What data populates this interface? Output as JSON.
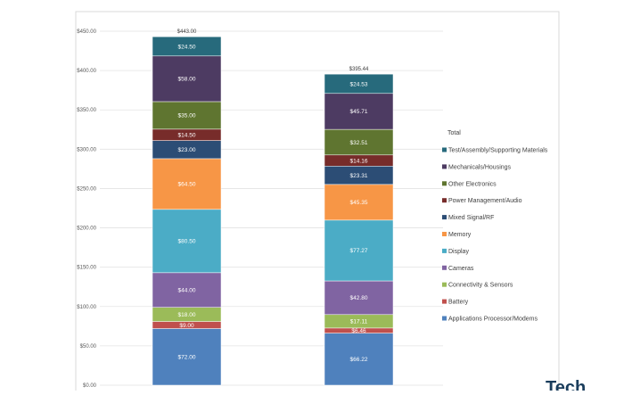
{
  "chart_data": {
    "type": "bar",
    "stacked": true,
    "categories": [
      "",
      ""
    ],
    "y_ticks": [
      "$0.00",
      "$50.00",
      "$100.00",
      "$150.00",
      "$200.00",
      "$250.00",
      "$300.00",
      "$350.00",
      "$400.00",
      "$450.00"
    ],
    "ylim": [
      0,
      450
    ],
    "grid": true,
    "legend_title": "Total",
    "legend_position": "right",
    "series": [
      {
        "name": "Applications Processor/Modems",
        "color": "#4f81bd",
        "values": [
          72.0,
          66.22
        ],
        "labels": [
          "$72.00",
          "$66.22"
        ]
      },
      {
        "name": "Battery",
        "color": "#c0504d",
        "values": [
          9.0,
          6.46
        ],
        "labels": [
          "$9.00",
          "$6.46"
        ]
      },
      {
        "name": "Connectivity & Sensors",
        "color": "#9bbb59",
        "values": [
          18.0,
          17.11
        ],
        "labels": [
          "$18.00",
          "$17.11"
        ]
      },
      {
        "name": "Cameras",
        "color": "#8064a2",
        "values": [
          44.0,
          42.8
        ],
        "labels": [
          "$44.00",
          "$42.80"
        ]
      },
      {
        "name": "Display",
        "color": "#4bacc6",
        "values": [
          80.5,
          77.27
        ],
        "labels": [
          "$80.50",
          "$77.27"
        ]
      },
      {
        "name": "Memory",
        "color": "#f79646",
        "values": [
          64.5,
          45.35
        ],
        "labels": [
          "$64.50",
          "$45.35"
        ]
      },
      {
        "name": "Mixed Signal/RF",
        "color": "#2c4d75",
        "values": [
          23.0,
          23.31
        ],
        "labels": [
          "$23.00",
          "$23.31"
        ]
      },
      {
        "name": "Power Management/Audio",
        "color": "#772c2a",
        "values": [
          14.5,
          14.16
        ],
        "labels": [
          "$14.50",
          "$14.16"
        ]
      },
      {
        "name": "Other Electronics",
        "color": "#5f7530",
        "values": [
          35.0,
          32.51
        ],
        "labels": [
          "$35.00",
          "$32.51"
        ]
      },
      {
        "name": "Mechanicals/Housings",
        "color": "#4d3b62",
        "values": [
          58.0,
          45.71
        ],
        "labels": [
          "$58.00",
          "$45.71"
        ]
      },
      {
        "name": "Test/Assembly/Supporting Materials",
        "color": "#276a7c",
        "values": [
          24.5,
          24.53
        ],
        "labels": [
          "$24.50",
          "$24.53"
        ]
      }
    ],
    "totals": [
      "$443.00",
      "$395.44"
    ]
  },
  "watermark": "Tech"
}
